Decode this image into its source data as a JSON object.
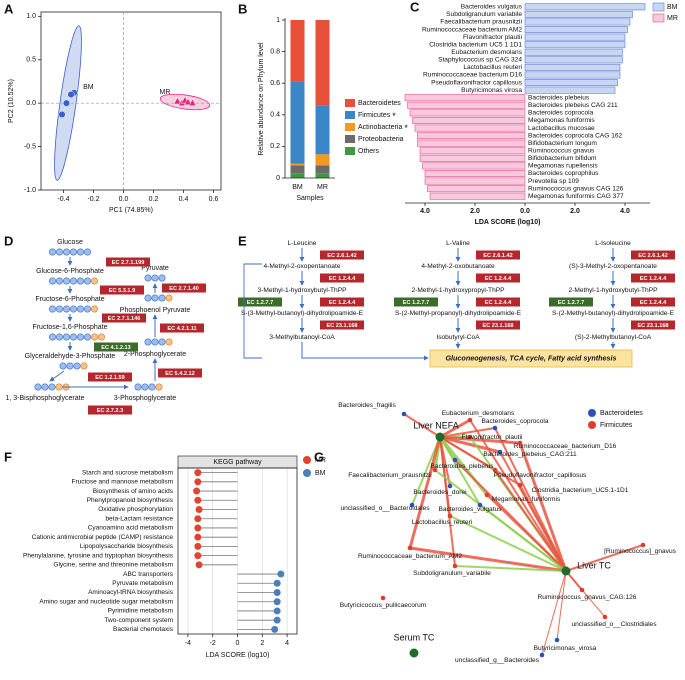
{
  "chart_data": [
    {
      "panel": "A",
      "type": "scatter",
      "xlabel": "PC1 (74.85%)",
      "ylabel": "PC2 (10.52%)",
      "xlim": [
        -0.55,
        0.65
      ],
      "ylim": [
        -1.0,
        1.05
      ],
      "xticks": [
        -0.4,
        -0.2,
        {
          "value": 0,
          "label": "0.0"
        },
        0.2,
        0.4,
        0.6
      ],
      "yticks": [
        {
          "value": -1,
          "label": "-1.0"
        },
        -0.5,
        {
          "value": 0,
          "label": "0.0"
        },
        0.5,
        {
          "value": 1,
          "label": "1.0"
        }
      ],
      "series": [
        {
          "name": "BM",
          "color": "#3a5fcd",
          "marker": "circle",
          "x": [
            -0.33,
            -0.35,
            -0.38,
            -0.41
          ],
          "values": [
            0.12,
            0.1,
            0.0,
            -0.13
          ]
        },
        {
          "name": "MR",
          "color": "#e0287a",
          "marker": "triangle",
          "x": [
            0.36,
            0.39,
            0.41,
            0.43,
            0.46
          ],
          "values": [
            0.02,
            0.0,
            0.03,
            0.01,
            0.0
          ]
        }
      ]
    },
    {
      "panel": "B",
      "type": "bar",
      "stacked": true,
      "ylabel": "Relative abundance on Phylum level",
      "xlabel": "Samples",
      "categories": [
        "BM",
        "MR"
      ],
      "ylim": [
        0,
        1
      ],
      "yticks": [
        0,
        0.2,
        0.4,
        0.6,
        0.8,
        1
      ],
      "series": [
        {
          "name": "Bacteroidetes",
          "color": "#e8503a",
          "values": [
            0.39,
            0.54
          ]
        },
        {
          "name": "Firmicutes",
          "color": "#3b86c6",
          "values": [
            0.52,
            0.31
          ],
          "annotation": "*",
          "annotation_color": "#e02020"
        },
        {
          "name": "Actinobacteria",
          "color": "#f39a1e",
          "values": [
            0.01,
            0.07
          ],
          "annotation": "*",
          "annotation_color": "#e02020"
        },
        {
          "name": "Proteobacteria",
          "color": "#6b6b6b",
          "values": [
            0.05,
            0.05
          ]
        },
        {
          "name": "Others",
          "color": "#3f9a3f",
          "values": [
            0.03,
            0.03
          ]
        }
      ]
    },
    {
      "panel": "C",
      "type": "barh",
      "xlabel": "LDA SCORE (log10)",
      "xlim": [
        -4.8,
        5.0
      ],
      "xticks": [
        {
          "value": -4,
          "label": "4.0"
        },
        {
          "value": -2,
          "label": "2.0"
        },
        {
          "value": 0,
          "label": "0.0"
        },
        {
          "value": 2,
          "label": "2.0"
        },
        {
          "value": 4,
          "label": "4.0"
        }
      ],
      "categories": [
        "Bacteroides vulgatus",
        "Subdoligranulum variabile",
        "Faecalibacterium prausnitzii",
        "Ruminococcaceae bacterium AM2",
        "Flavonifractor plautii",
        "Clostridia bacterium UC5 1 1D1",
        "Eubacterium desmolans",
        "Staphylococcus sp CAG 324",
        "Lactobacillus reuteri",
        "Ruminococcaceae bacterium D16",
        "Pseudoflavonifractor capillosus",
        "Butyricimonas virosa",
        "Bacteroides plebeius",
        "Bacteroides plebeius CAG 211",
        "Bacteroides coprocola",
        "Megamonas funiformis",
        "Lactobacillus mucosae",
        "Bacteroides coprocola CAG 162",
        "Bifidobacterium longum",
        "Ruminococcus gnavus",
        "Bifidobacterium bifidum",
        "Megamonas rupellensis",
        "Bacteroides coprophilus",
        "Prevotella sp 109",
        "Ruminococcus gnavus CAG 126",
        "Megamonas funiformis CAG 377"
      ],
      "series": [
        {
          "name": "BM",
          "color": "#c9d5f3",
          "edge": "#5b7fd6",
          "values": [
            4.8,
            4.3,
            4.2,
            4.1,
            4.0,
            4.0,
            3.9,
            3.9,
            3.8,
            3.8,
            3.7,
            3.6,
            null,
            null,
            null,
            null,
            null,
            null,
            null,
            null,
            null,
            null,
            null,
            null,
            null,
            null
          ]
        },
        {
          "name": "MR",
          "color": "#f8c9dc",
          "edge": "#e0548f",
          "values": [
            null,
            null,
            null,
            null,
            null,
            null,
            null,
            null,
            null,
            null,
            null,
            null,
            -4.8,
            -4.7,
            -4.6,
            -4.5,
            -4.4,
            -4.3,
            -4.3,
            -4.2,
            -4.2,
            -4.1,
            -4.0,
            -4.0,
            -3.9,
            -3.8
          ]
        }
      ]
    },
    {
      "panel": "F",
      "type": "lollipop",
      "title": "KEGG pathway",
      "xlabel": "LDA SCORE (log10)",
      "xlim": [
        -4.8,
        4.8
      ],
      "xticks": [
        -4,
        -2,
        0,
        2,
        4
      ],
      "grid": true,
      "categories": [
        "Starch and sucrose metabolism",
        "Fructose and mannose metabolism",
        "Biosynthesis of amino acids",
        "Phenylpropanoid biosynthesis",
        "Oxidative phosphorylation",
        "beta-Lactam resistance",
        "Cyanoamino acid metabolism",
        "Cationic antimicrobial peptide (CAMP) resistance",
        "Lipopolysaccharide biosynthesis",
        "Phenylalanine, tyrosine and tryptophan biosynthesis",
        "Glycine, serine and threonine metabolism",
        "ABC transporters",
        "Pyruvate metabolism",
        "Aminoacyl-tRNA biosynthesis",
        "Amino sugar and nucleotide sugar metabolism",
        "Pyrimidine metabolism",
        "Two-component system",
        "Bacterial chemotaxis"
      ],
      "series": [
        {
          "name": "MR",
          "color": "#e2432f",
          "values": [
            -3.2,
            -3.2,
            -3.3,
            -3.2,
            -3.1,
            -3.2,
            -3.2,
            -3.2,
            -3.2,
            -3.2,
            -3.1,
            null,
            null,
            null,
            null,
            null,
            null,
            null
          ]
        },
        {
          "name": "BM",
          "color": "#4a7fb8",
          "values": [
            null,
            null,
            null,
            null,
            null,
            null,
            null,
            null,
            null,
            null,
            null,
            3.5,
            3.2,
            3.2,
            3.2,
            3.2,
            3.2,
            3.0
          ]
        }
      ]
    }
  ],
  "glycolysis": {
    "panel": "D",
    "metabolites": [
      "Glucose",
      "Glucose-6-Phosphate",
      "Fructose-6-Phosphate",
      "Fructose-1,6-Phosphate",
      "Glyceraldehyde-3-Phosphate",
      "1, 3-Bisphosphoglycerate",
      "3-Phosphoglycerate",
      "2-Phosphoglycerate",
      "Phosphoenol Pyruvate",
      "Pyruvate"
    ],
    "enzymes": [
      {
        "label": "EC 2.7.1.199",
        "color": "#b3272d"
      },
      {
        "label": "EC 5.3.1.9",
        "color": "#b3272d"
      },
      {
        "label": "EC 2.7.1.146",
        "color": "#b3272d"
      },
      {
        "label": "EC 4.1.2.13",
        "color": "#3d6b2a"
      },
      {
        "label": "EC 1.2.1.59",
        "color": "#b3272d"
      },
      {
        "label": "EC 2.7.2.3",
        "color": "#b3272d"
      },
      {
        "label": "EC 5.4.2.12",
        "color": "#b3272d"
      },
      {
        "label": "EC 4.2.1.11",
        "color": "#b3272d"
      },
      {
        "label": "EC 2.7.1.40",
        "color": "#b3272d"
      }
    ]
  },
  "bcaa": {
    "panel": "E",
    "pathways": [
      {
        "compounds": [
          "L-Leucine",
          "4-Methyl-2-oxopentanoate",
          "3-Methyl-1-hydroxybutyl-ThPP",
          "S-(3-Methyl-butanoyl)-dihydrolipoamide-E",
          "3-Methylbutanoyl-CoA"
        ],
        "enzymes": [
          {
            "label": "EC 2.6.1.42",
            "color": "#b3272d"
          },
          {
            "label": "EC 1.2.4.4",
            "color": "#b3272d"
          },
          {
            "label": "EC 1.2.7.7",
            "color": "#3d6b2a"
          },
          {
            "label": "EC 1.2.4.4",
            "color": "#b3272d"
          },
          {
            "label": "EC 23.1.168",
            "color": "#b3272d"
          }
        ]
      },
      {
        "compounds": [
          "L-Valine",
          "4-Methyl-2-oxobutanoate",
          "2-Methyl-1-hydroxypropyl-ThPP",
          "S-(2-Methyl-propanoyl)-dihydrolipoamide-E",
          "Isobutyryl-CoA"
        ],
        "enzymes": [
          {
            "label": "EC 2.6.1.42",
            "color": "#b3272d"
          },
          {
            "label": "EC 1.2.4.4",
            "color": "#b3272d"
          },
          {
            "label": "EC 1.2.7.7",
            "color": "#3d6b2a"
          },
          {
            "label": "EC 1.2.4.4",
            "color": "#b3272d"
          },
          {
            "label": "EC 23.1.168",
            "color": "#b3272d"
          }
        ]
      },
      {
        "compounds": [
          "L-Isoleucine",
          "(S)-3-Methyl-2-oxopentanoate",
          "2-Methyl-1-hydroxybutyl-ThPP",
          "S-(2-Methyl-butanoyl)-dihydrolipoamide-E",
          "(S)-2-Methylbutanoyl-CoA"
        ],
        "enzymes": [
          {
            "label": "EC 2.6.1.42",
            "color": "#b3272d"
          },
          {
            "label": "EC 1.2.4.4",
            "color": "#b3272d"
          },
          {
            "label": "EC 1.2.7.7",
            "color": "#3d6b2a"
          },
          {
            "label": "EC 1.2.4.4",
            "color": "#b3272d"
          },
          {
            "label": "EC 23.1.168",
            "color": "#b3272d"
          }
        ]
      }
    ],
    "outcome": "Gluconeogenesis, TCA cycle, Fatty acid synthesis"
  },
  "network": {
    "panel": "G",
    "legend": [
      {
        "label": "Bacteroidetes",
        "color": "#2f4fbf"
      },
      {
        "label": "Firmicutes",
        "color": "#e23b2e"
      }
    ],
    "hubs": [
      {
        "label": "Liver NEFA",
        "color": "#1f6b2e",
        "label_color": "#1ba2c5"
      },
      {
        "label": "Liver TC",
        "color": "#1f6b2e",
        "label_color": "#1ba2c5"
      },
      {
        "label": "Serum TC",
        "color": "#1f6b2e",
        "label_color": "#1ba2c5"
      }
    ],
    "nodes": [
      {
        "label": "Bacteroides_fragilis",
        "color": "#2f4fbf"
      },
      {
        "label": "Eubacterium_desmolans",
        "color": "#e23b2e"
      },
      {
        "label": "Bacteroides_coprocola",
        "color": "#2f4fbf"
      },
      {
        "label": "Flavonifractor_plautii",
        "color": "#e23b2e"
      },
      {
        "label": "Ruminococcaceae_bacterium_D16",
        "color": "#e23b2e"
      },
      {
        "label": "Bacteroides_plebeius_CAG:211",
        "color": "#2f4fbf"
      },
      {
        "label": "Bacteroides_plebeius",
        "color": "#2f4fbf"
      },
      {
        "label": "Faecalibacterium_prausnitzii",
        "color": "#e23b2e"
      },
      {
        "label": "Pseudoflavonifractor_capillosus",
        "color": "#e23b2e"
      },
      {
        "label": "Clostridia_bacterium_UC5.1-1D1",
        "color": "#e23b2e"
      },
      {
        "label": "Bacteroides_dorei",
        "color": "#2f4fbf"
      },
      {
        "label": "Megamonas_funiformis",
        "color": "#e23b2e"
      },
      {
        "label": "unclassified_o__Bacteroidales",
        "color": "#2f4fbf"
      },
      {
        "label": "Bacteroides_vulgatus",
        "color": "#2f4fbf"
      },
      {
        "label": "Lactobacillus_reuteri",
        "color": "#e23b2e"
      },
      {
        "label": "[Ruminococcus]_gnavus",
        "color": "#e23b2e"
      },
      {
        "label": "Ruminococcaceae_bacterium_AM2",
        "color": "#e23b2e"
      },
      {
        "label": "Subdoligranulum_variabile",
        "color": "#e23b2e"
      },
      {
        "label": "Ruminococcus_gnavus_CAG:126",
        "color": "#e23b2e"
      },
      {
        "label": "Butyricicoccus_pullicaecorum",
        "color": "#e23b2e"
      },
      {
        "label": "unclassified_o__Clostridiales",
        "color": "#e23b2e"
      },
      {
        "label": "Butyricimonas_virosa",
        "color": "#2f4fbf"
      },
      {
        "label": "unclassified_g__Bacteroides",
        "color": "#2f4fbf"
      }
    ]
  }
}
